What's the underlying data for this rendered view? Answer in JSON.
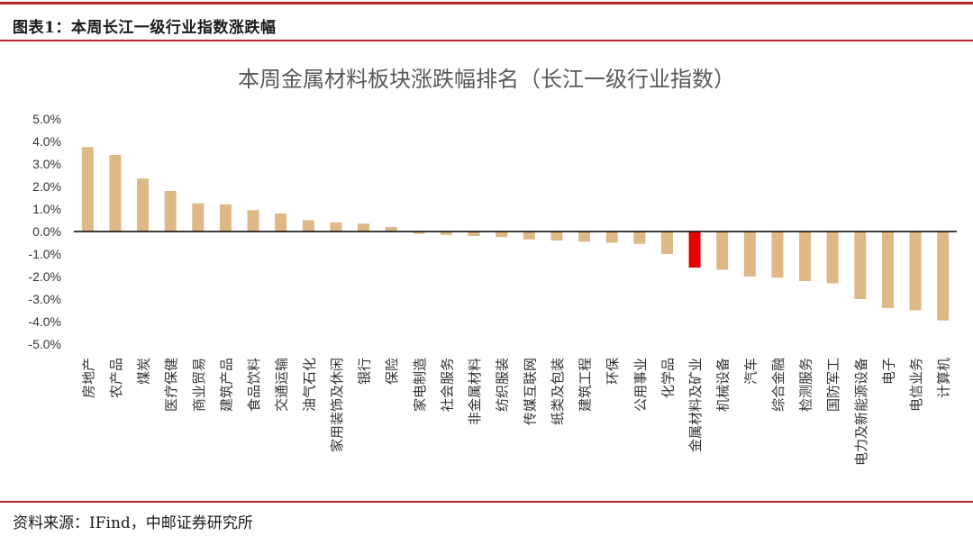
{
  "header": {
    "figure_label": "图表1：本周长江一级行业指数涨跌幅"
  },
  "footer": {
    "source": "资料来源：IFind，中邮证券研究所"
  },
  "colors": {
    "bar": "#deb887",
    "highlight": "#e60000",
    "rule": "#b8252a"
  },
  "chart_data": {
    "type": "bar",
    "title": "本周金属材料板块涨跌幅排名（长江一级行业指数）",
    "ylim": [
      -5.0,
      5.0
    ],
    "yticks": [
      "5.0%",
      "4.0%",
      "3.0%",
      "2.0%",
      "1.0%",
      "0.0%",
      "-1.0%",
      "-2.0%",
      "-3.0%",
      "-4.0%",
      "-5.0%"
    ],
    "highlight": "金属材料及矿业",
    "categories": [
      "房地产",
      "农产品",
      "煤炭",
      "医疗保健",
      "商业贸易",
      "建筑产品",
      "食品饮料",
      "交通运输",
      "油气石化",
      "家用装饰及休闲",
      "银行",
      "保险",
      "家电制造",
      "社会服务",
      "非金属材料",
      "纺织服装",
      "传媒互联网",
      "纸类及包装",
      "建筑工程",
      "环保",
      "公用事业",
      "化学品",
      "金属材料及矿业",
      "机械设备",
      "汽车",
      "综合金融",
      "检测服务",
      "国防军工",
      "电力及新能源设备",
      "电子",
      "电信业务",
      "计算机"
    ],
    "values": [
      3.75,
      3.4,
      2.35,
      1.8,
      1.25,
      1.2,
      0.95,
      0.8,
      0.5,
      0.4,
      0.35,
      0.2,
      -0.1,
      -0.15,
      -0.2,
      -0.25,
      -0.35,
      -0.4,
      -0.45,
      -0.5,
      -0.55,
      -1.0,
      -1.6,
      -1.7,
      -2.0,
      -2.05,
      -2.2,
      -2.3,
      -3.0,
      -3.4,
      -3.5,
      -3.95
    ]
  }
}
